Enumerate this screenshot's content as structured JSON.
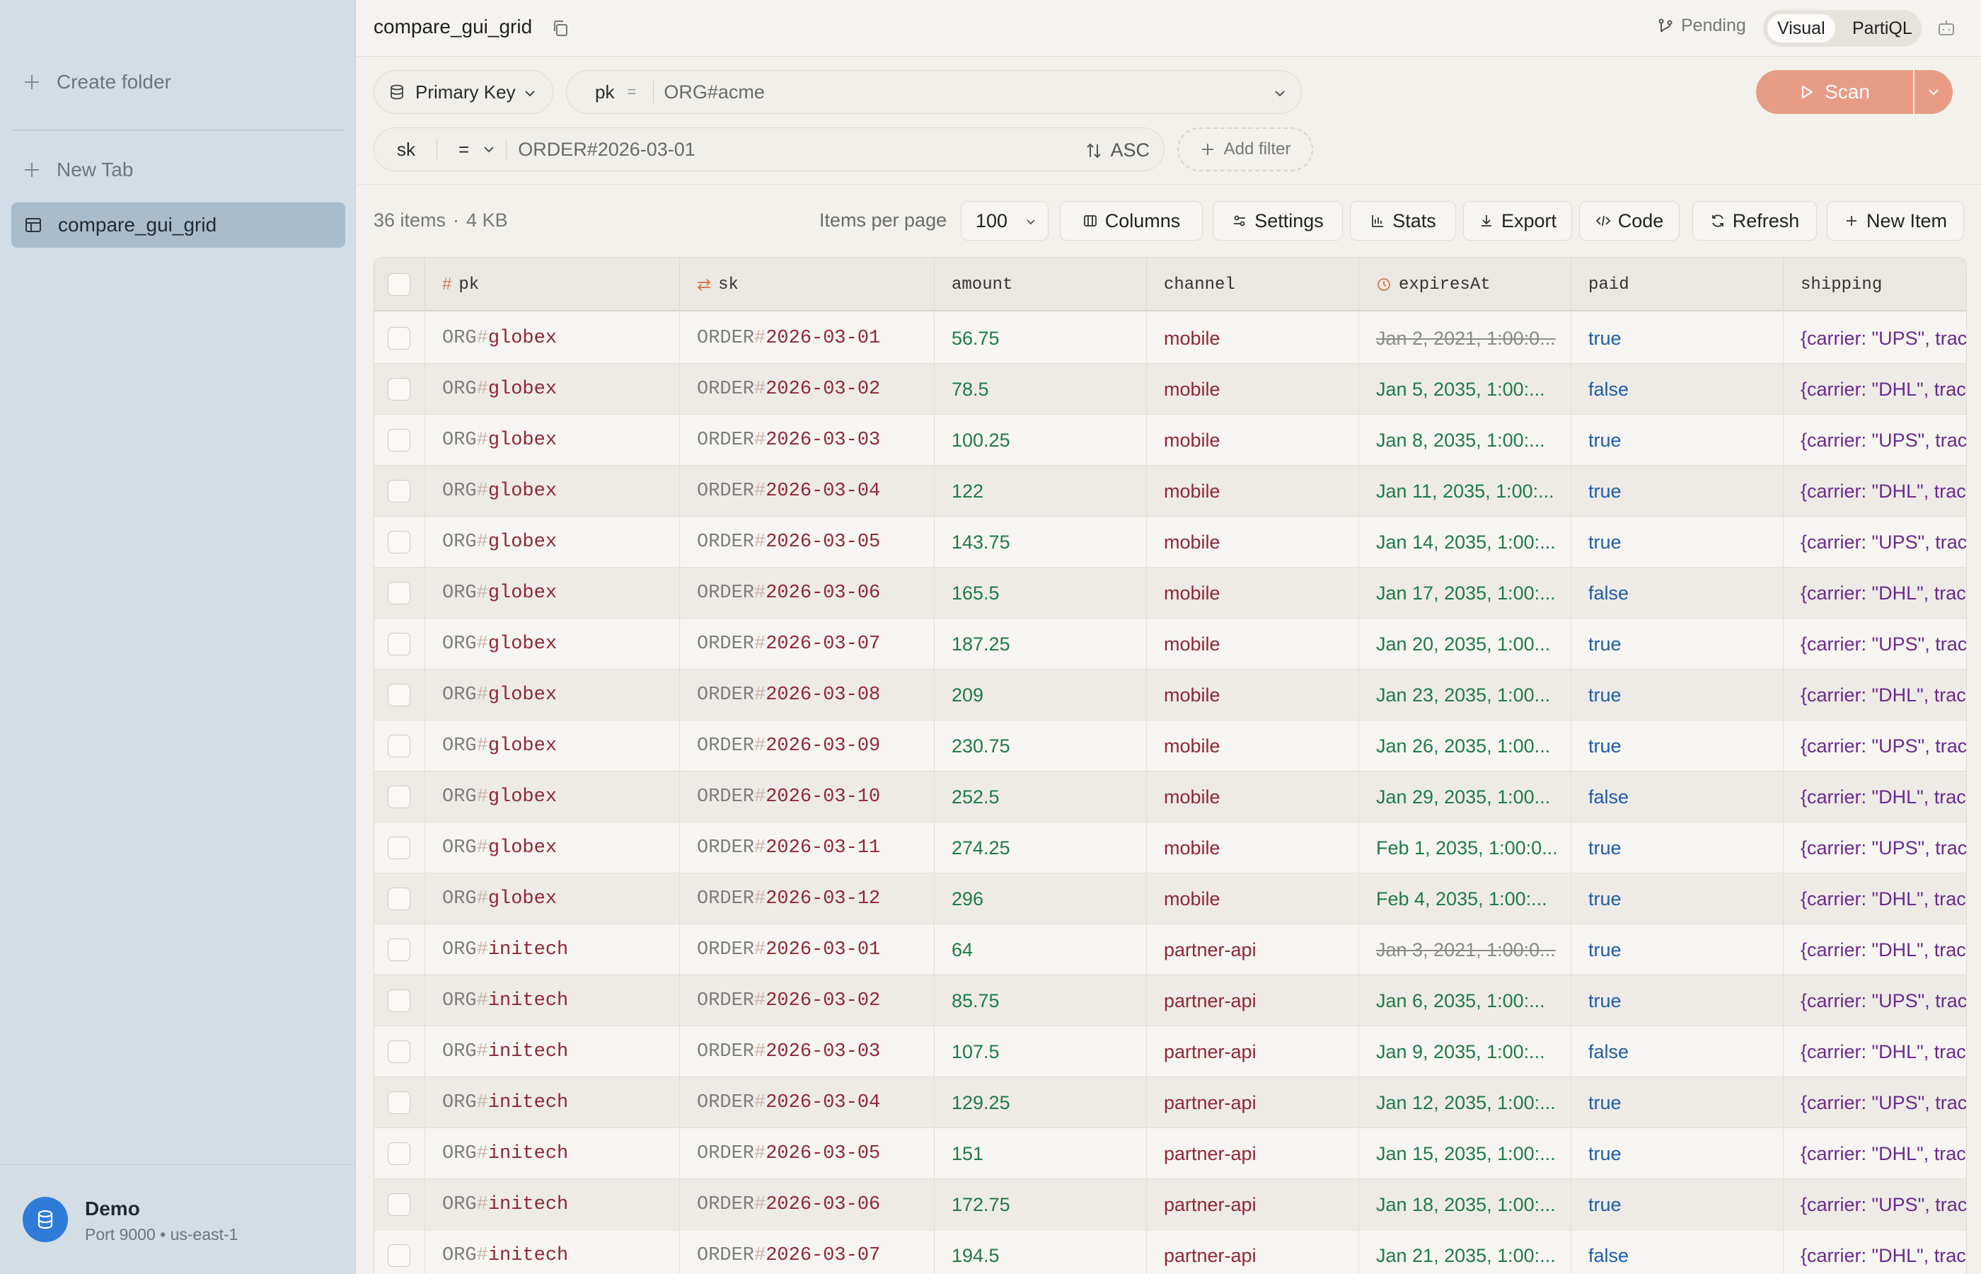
{
  "sidebar": {
    "create_folder": "Create folder",
    "new_tab": "New Tab",
    "active_table": "compare_gui_grid",
    "connection": {
      "name": "Demo",
      "detail": "Port 9000 • us-east-1"
    }
  },
  "topbar": {
    "title": "compare_gui_grid",
    "pending": "Pending",
    "mode_visual": "Visual",
    "mode_partiql": "PartiQL"
  },
  "query": {
    "index_select": "Primary Key",
    "pk_name": "pk",
    "pk_op": "=",
    "pk_value": "ORG#acme",
    "sk_name": "sk",
    "sk_op": "=",
    "sk_value": "ORDER#2026-03-01",
    "sort": "ASC",
    "add_filter": "Add filter",
    "scan": "Scan"
  },
  "toolbar": {
    "item_count": "36 items",
    "size": "4 KB",
    "items_per_page_label": "Items per page",
    "items_per_page": "100",
    "columns": "Columns",
    "settings": "Settings",
    "stats": "Stats",
    "export": "Export",
    "code": "Code",
    "refresh": "Refresh",
    "new_item": "New Item"
  },
  "table": {
    "headers": {
      "pk": "pk",
      "sk": "sk",
      "amount": "amount",
      "channel": "channel",
      "expiresAt": "expiresAt",
      "paid": "paid",
      "shipping": "shipping"
    },
    "rows": [
      {
        "pk_prefix": "ORG",
        "pk_key": "globex",
        "sk_prefix": "ORDER",
        "sk_key": "2026-03-01",
        "amount": "56.75",
        "channel": "mobile",
        "expiresAt": "Jan 2, 2021, 1:00:0...",
        "expired": true,
        "paid": "true",
        "shipping": "{carrier: \"UPS\", trac"
      },
      {
        "pk_prefix": "ORG",
        "pk_key": "globex",
        "sk_prefix": "ORDER",
        "sk_key": "2026-03-02",
        "amount": "78.5",
        "channel": "mobile",
        "expiresAt": "Jan 5, 2035, 1:00:...",
        "expired": false,
        "paid": "false",
        "shipping": "{carrier: \"DHL\", trac"
      },
      {
        "pk_prefix": "ORG",
        "pk_key": "globex",
        "sk_prefix": "ORDER",
        "sk_key": "2026-03-03",
        "amount": "100.25",
        "channel": "mobile",
        "expiresAt": "Jan 8, 2035, 1:00:...",
        "expired": false,
        "paid": "true",
        "shipping": "{carrier: \"UPS\", trac"
      },
      {
        "pk_prefix": "ORG",
        "pk_key": "globex",
        "sk_prefix": "ORDER",
        "sk_key": "2026-03-04",
        "amount": "122",
        "channel": "mobile",
        "expiresAt": "Jan 11, 2035, 1:00:...",
        "expired": false,
        "paid": "true",
        "shipping": "{carrier: \"DHL\", trac"
      },
      {
        "pk_prefix": "ORG",
        "pk_key": "globex",
        "sk_prefix": "ORDER",
        "sk_key": "2026-03-05",
        "amount": "143.75",
        "channel": "mobile",
        "expiresAt": "Jan 14, 2035, 1:00:...",
        "expired": false,
        "paid": "true",
        "shipping": "{carrier: \"UPS\", trac"
      },
      {
        "pk_prefix": "ORG",
        "pk_key": "globex",
        "sk_prefix": "ORDER",
        "sk_key": "2026-03-06",
        "amount": "165.5",
        "channel": "mobile",
        "expiresAt": "Jan 17, 2035, 1:00:...",
        "expired": false,
        "paid": "false",
        "shipping": "{carrier: \"DHL\", trac"
      },
      {
        "pk_prefix": "ORG",
        "pk_key": "globex",
        "sk_prefix": "ORDER",
        "sk_key": "2026-03-07",
        "amount": "187.25",
        "channel": "mobile",
        "expiresAt": "Jan 20, 2035, 1:00...",
        "expired": false,
        "paid": "true",
        "shipping": "{carrier: \"UPS\", trac"
      },
      {
        "pk_prefix": "ORG",
        "pk_key": "globex",
        "sk_prefix": "ORDER",
        "sk_key": "2026-03-08",
        "amount": "209",
        "channel": "mobile",
        "expiresAt": "Jan 23, 2035, 1:00...",
        "expired": false,
        "paid": "true",
        "shipping": "{carrier: \"DHL\", trac"
      },
      {
        "pk_prefix": "ORG",
        "pk_key": "globex",
        "sk_prefix": "ORDER",
        "sk_key": "2026-03-09",
        "amount": "230.75",
        "channel": "mobile",
        "expiresAt": "Jan 26, 2035, 1:00...",
        "expired": false,
        "paid": "true",
        "shipping": "{carrier: \"UPS\", trac"
      },
      {
        "pk_prefix": "ORG",
        "pk_key": "globex",
        "sk_prefix": "ORDER",
        "sk_key": "2026-03-10",
        "amount": "252.5",
        "channel": "mobile",
        "expiresAt": "Jan 29, 2035, 1:00...",
        "expired": false,
        "paid": "false",
        "shipping": "{carrier: \"DHL\", trac"
      },
      {
        "pk_prefix": "ORG",
        "pk_key": "globex",
        "sk_prefix": "ORDER",
        "sk_key": "2026-03-11",
        "amount": "274.25",
        "channel": "mobile",
        "expiresAt": "Feb 1, 2035, 1:00:0...",
        "expired": false,
        "paid": "true",
        "shipping": "{carrier: \"UPS\", trac"
      },
      {
        "pk_prefix": "ORG",
        "pk_key": "globex",
        "sk_prefix": "ORDER",
        "sk_key": "2026-03-12",
        "amount": "296",
        "channel": "mobile",
        "expiresAt": "Feb 4, 2035, 1:00:...",
        "expired": false,
        "paid": "true",
        "shipping": "{carrier: \"DHL\", trac"
      },
      {
        "pk_prefix": "ORG",
        "pk_key": "initech",
        "sk_prefix": "ORDER",
        "sk_key": "2026-03-01",
        "amount": "64",
        "channel": "partner-api",
        "expiresAt": "Jan 3, 2021, 1:00:0...",
        "expired": true,
        "paid": "true",
        "shipping": "{carrier: \"DHL\", trac"
      },
      {
        "pk_prefix": "ORG",
        "pk_key": "initech",
        "sk_prefix": "ORDER",
        "sk_key": "2026-03-02",
        "amount": "85.75",
        "channel": "partner-api",
        "expiresAt": "Jan 6, 2035, 1:00:...",
        "expired": false,
        "paid": "true",
        "shipping": "{carrier: \"UPS\", trac"
      },
      {
        "pk_prefix": "ORG",
        "pk_key": "initech",
        "sk_prefix": "ORDER",
        "sk_key": "2026-03-03",
        "amount": "107.5",
        "channel": "partner-api",
        "expiresAt": "Jan 9, 2035, 1:00:...",
        "expired": false,
        "paid": "false",
        "shipping": "{carrier: \"DHL\", trac"
      },
      {
        "pk_prefix": "ORG",
        "pk_key": "initech",
        "sk_prefix": "ORDER",
        "sk_key": "2026-03-04",
        "amount": "129.25",
        "channel": "partner-api",
        "expiresAt": "Jan 12, 2035, 1:00:...",
        "expired": false,
        "paid": "true",
        "shipping": "{carrier: \"UPS\", trac"
      },
      {
        "pk_prefix": "ORG",
        "pk_key": "initech",
        "sk_prefix": "ORDER",
        "sk_key": "2026-03-05",
        "amount": "151",
        "channel": "partner-api",
        "expiresAt": "Jan 15, 2035, 1:00:...",
        "expired": false,
        "paid": "true",
        "shipping": "{carrier: \"DHL\", trac"
      },
      {
        "pk_prefix": "ORG",
        "pk_key": "initech",
        "sk_prefix": "ORDER",
        "sk_key": "2026-03-06",
        "amount": "172.75",
        "channel": "partner-api",
        "expiresAt": "Jan 18, 2035, 1:00:...",
        "expired": false,
        "paid": "true",
        "shipping": "{carrier: \"UPS\", trac"
      },
      {
        "pk_prefix": "ORG",
        "pk_key": "initech",
        "sk_prefix": "ORDER",
        "sk_key": "2026-03-07",
        "amount": "194.5",
        "channel": "partner-api",
        "expiresAt": "Jan 21, 2035, 1:00:...",
        "expired": false,
        "paid": "false",
        "shipping": "{carrier: \"DHL\", trac"
      }
    ]
  }
}
